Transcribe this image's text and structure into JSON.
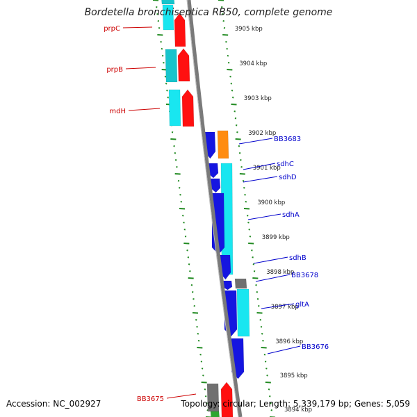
{
  "title": "Bordetella bronchiseptica RB50, complete genome",
  "accession": "Accession: NC_002927",
  "stats": "Topology: circular; Length: 5,339,179 bp; Genes: 5,059",
  "colors": {
    "backbone": "#7a7a7a",
    "tick": "#228b22",
    "left_label": "#cc0000",
    "right_label": "#0000cc",
    "cyan": "#19e6f0",
    "teal": "#17c4cc",
    "red": "#ff1010",
    "blue": "#1515e0",
    "orange": "#ff8c10",
    "grey": "#707070",
    "green": "#2ea62e"
  },
  "kbp_labels": [
    "3905 kbp",
    "3904 kbp",
    "3903 kbp",
    "3902 kbp",
    "3901 kbp",
    "3900 kbp",
    "3899 kbp",
    "3898 kbp",
    "3897 kbp",
    "3896 kbp",
    "3895 kbp",
    "3894 kbp"
  ],
  "left_genes": [
    "prpC",
    "prpB",
    "mdH",
    "BB3675"
  ],
  "right_genes": [
    "BB3683",
    "sdhC",
    "sdhD",
    "sdhA",
    "sdhB",
    "BB3678",
    "gltA",
    "BB3676"
  ]
}
